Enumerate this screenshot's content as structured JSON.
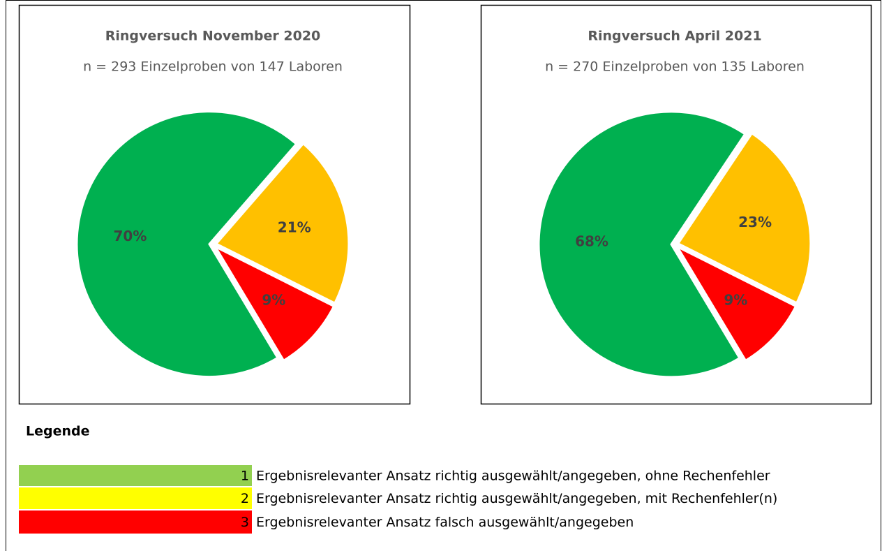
{
  "chart_data": [
    {
      "type": "pie",
      "title": "Ringversuch November 2020",
      "subtitle": "n = 293 Einzelproben von 147 Laboren",
      "values": [
        70,
        21,
        9
      ],
      "value_labels": [
        "70%",
        "21%",
        "9%"
      ],
      "colors": [
        "#00b050",
        "#ffc000",
        "#ff0000"
      ]
    },
    {
      "type": "pie",
      "title": "Ringversuch April 2021",
      "subtitle": "n = 270 Einzelproben von 135 Laboren",
      "values": [
        68,
        23,
        9
      ],
      "value_labels": [
        "68%",
        "23%",
        "9%"
      ],
      "colors": [
        "#00b050",
        "#ffc000",
        "#ff0000"
      ]
    }
  ],
  "legend": {
    "title": "Legende",
    "items": [
      {
        "number": 1,
        "label": "Ergebnisrelevanter Ansatz richtig ausgewählt/angegeben, ohne Rechenfehler",
        "color": "#92d050"
      },
      {
        "number": 2,
        "label": "Ergebnisrelevanter Ansatz richtig ausgewählt/angegeben, mit Rechenfehler(n)",
        "color": "#ffff00"
      },
      {
        "number": 3,
        "label": "Ergebnisrelevanter Ansatz falsch ausgewählt/angegeben",
        "color": "#ff0000"
      }
    ]
  }
}
